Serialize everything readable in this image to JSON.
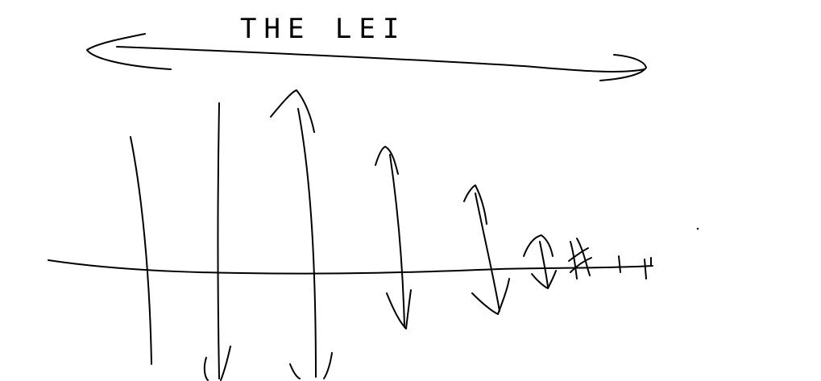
{
  "diagram": {
    "heading": "THE LEI",
    "ink_color": "#000000",
    "background_color": "#ffffff",
    "elements": [
      "double-headed-arrow",
      "baseline-axis",
      "vertical-oscillation-lines"
    ]
  }
}
